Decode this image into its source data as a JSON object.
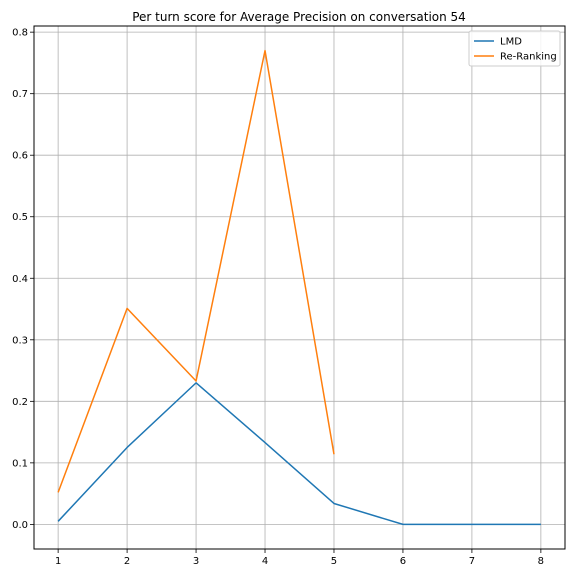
{
  "chart_data": {
    "type": "line",
    "title": "Per turn score for Average Precision on conversation 54",
    "xlabel": "",
    "ylabel": "",
    "xlim": [
      0.65,
      8.35
    ],
    "ylim": [
      -0.04,
      0.81
    ],
    "x_ticks": [
      1,
      2,
      3,
      4,
      5,
      6,
      7,
      8
    ],
    "y_ticks": [
      0.0,
      0.1,
      0.2,
      0.3,
      0.4,
      0.5,
      0.6,
      0.7,
      0.8
    ],
    "grid": true,
    "legend": "top-right",
    "series": [
      {
        "name": "LMD",
        "color": "#1f77b4",
        "x": [
          1,
          2,
          3,
          4,
          5,
          6,
          7,
          8
        ],
        "values": [
          0.005,
          0.125,
          0.23,
          0.133,
          0.034,
          0.0,
          0.0,
          0.0
        ]
      },
      {
        "name": "Re-Ranking",
        "color": "#ff7f0e",
        "x": [
          1,
          2,
          3,
          4,
          5
        ],
        "values": [
          0.052,
          0.351,
          0.233,
          0.77,
          0.114
        ]
      }
    ]
  }
}
